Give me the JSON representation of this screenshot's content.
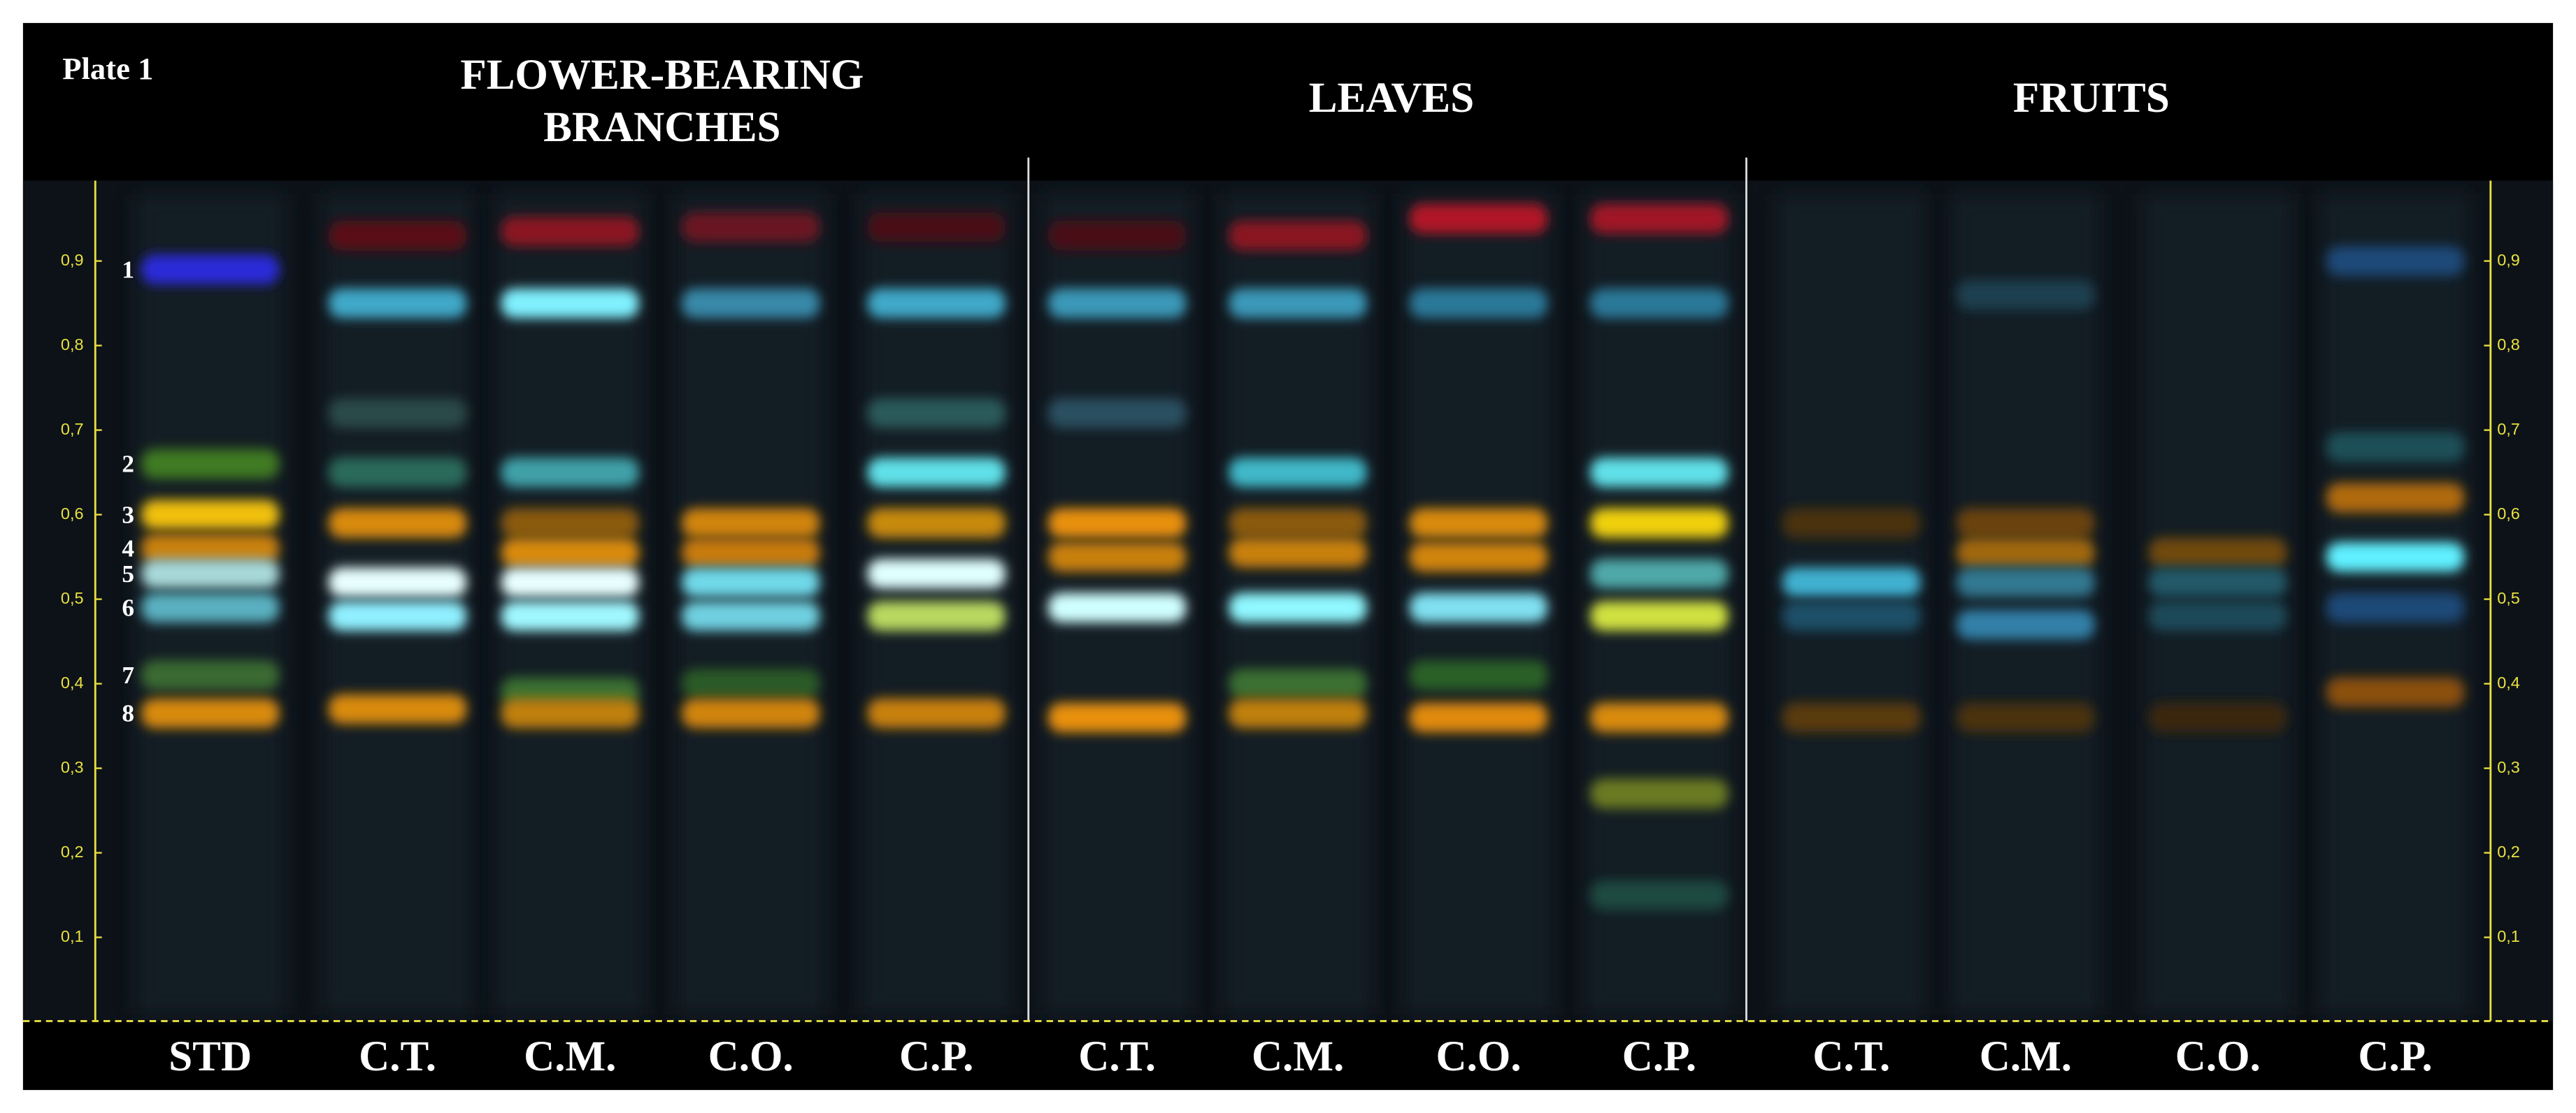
{
  "plate_label": "Plate 1",
  "rf_axis": {
    "ylim": [
      0,
      1
    ],
    "ticks": [
      {
        "value": 0.1,
        "label": "0,1"
      },
      {
        "value": 0.2,
        "label": "0,2"
      },
      {
        "value": 0.3,
        "label": "0,3"
      },
      {
        "value": 0.4,
        "label": "0,4"
      },
      {
        "value": 0.5,
        "label": "0,5"
      },
      {
        "value": 0.6,
        "label": "0,6"
      },
      {
        "value": 0.7,
        "label": "0,7"
      },
      {
        "value": 0.8,
        "label": "0,8"
      },
      {
        "value": 0.9,
        "label": "0,9"
      }
    ]
  },
  "standard": {
    "label": "STD",
    "bands": [
      {
        "number": "1",
        "rf": 0.89,
        "color": "#2a2ad8"
      },
      {
        "number": "2",
        "rf": 0.66,
        "color": "#3f7a22"
      },
      {
        "number": "3",
        "rf": 0.6,
        "color": "#f0c010"
      },
      {
        "number": "4",
        "rf": 0.56,
        "color": "#c88010"
      },
      {
        "number": "5",
        "rf": 0.53,
        "color": "#a8d8d8"
      },
      {
        "number": "6",
        "rf": 0.49,
        "color": "#5ab0c0"
      },
      {
        "number": "7",
        "rf": 0.41,
        "color": "#3a6a30"
      },
      {
        "number": "8",
        "rf": 0.365,
        "color": "#d88a10"
      }
    ]
  },
  "sections": [
    {
      "title_lines": [
        "FLOWER-BEARING",
        "BRANCHES"
      ],
      "lanes": [
        {
          "label": "C.T.",
          "bands": [
            {
              "rf": 0.93,
              "color": "#5a1018"
            },
            {
              "rf": 0.85,
              "color": "#40a8c8"
            },
            {
              "rf": 0.72,
              "color": "#2a4a48"
            },
            {
              "rf": 0.65,
              "color": "#2a6a5a"
            },
            {
              "rf": 0.59,
              "color": "#d88a10"
            },
            {
              "rf": 0.52,
              "color": "#e8ffff"
            },
            {
              "rf": 0.48,
              "color": "#90f0ff"
            },
            {
              "rf": 0.37,
              "color": "#d88a10"
            }
          ]
        },
        {
          "label": "C.M.",
          "bands": [
            {
              "rf": 0.935,
              "color": "#8a1820"
            },
            {
              "rf": 0.85,
              "color": "#80f0ff"
            },
            {
              "rf": 0.65,
              "color": "#40a0a8"
            },
            {
              "rf": 0.59,
              "color": "#8a5a10"
            },
            {
              "rf": 0.555,
              "color": "#d88a10"
            },
            {
              "rf": 0.52,
              "color": "#e8ffff"
            },
            {
              "rf": 0.48,
              "color": "#a0f8ff"
            },
            {
              "rf": 0.39,
              "color": "#3a7030"
            },
            {
              "rf": 0.365,
              "color": "#c08010"
            }
          ]
        },
        {
          "label": "C.O.",
          "bands": [
            {
              "rf": 0.94,
              "color": "#6a1420"
            },
            {
              "rf": 0.85,
              "color": "#3888a8"
            },
            {
              "rf": 0.59,
              "color": "#d08410"
            },
            {
              "rf": 0.555,
              "color": "#c87a10"
            },
            {
              "rf": 0.52,
              "color": "#70d8e8"
            },
            {
              "rf": 0.48,
              "color": "#70d0e0"
            },
            {
              "rf": 0.4,
              "color": "#2a5a28"
            },
            {
              "rf": 0.365,
              "color": "#d08410"
            }
          ]
        },
        {
          "label": "C.P.",
          "bands": [
            {
              "rf": 0.94,
              "color": "#4a1018"
            },
            {
              "rf": 0.85,
              "color": "#40a8c8"
            },
            {
              "rf": 0.72,
              "color": "#2a5a5a"
            },
            {
              "rf": 0.65,
              "color": "#60e0e8"
            },
            {
              "rf": 0.59,
              "color": "#c88a10"
            },
            {
              "rf": 0.53,
              "color": "#e0ffff"
            },
            {
              "rf": 0.48,
              "color": "#b8d860"
            },
            {
              "rf": 0.365,
              "color": "#c88010"
            }
          ]
        }
      ]
    },
    {
      "title_lines": [
        "LEAVES"
      ],
      "lanes": [
        {
          "label": "C.T.",
          "bands": [
            {
              "rf": 0.93,
              "color": "#4a1018"
            },
            {
              "rf": 0.85,
              "color": "#3a98b8"
            },
            {
              "rf": 0.72,
              "color": "#2a5060"
            },
            {
              "rf": 0.59,
              "color": "#e89010"
            },
            {
              "rf": 0.55,
              "color": "#c88010"
            },
            {
              "rf": 0.49,
              "color": "#d0ffff"
            },
            {
              "rf": 0.36,
              "color": "#e89010"
            }
          ]
        },
        {
          "label": "C.M.",
          "bands": [
            {
              "rf": 0.93,
              "color": "#8a1820"
            },
            {
              "rf": 0.85,
              "color": "#3a98b8"
            },
            {
              "rf": 0.65,
              "color": "#40b8c8"
            },
            {
              "rf": 0.59,
              "color": "#8a5a10"
            },
            {
              "rf": 0.555,
              "color": "#c88010"
            },
            {
              "rf": 0.49,
              "color": "#90f8ff"
            },
            {
              "rf": 0.4,
              "color": "#3a7030"
            },
            {
              "rf": 0.365,
              "color": "#c08010"
            }
          ]
        },
        {
          "label": "C.O.",
          "bands": [
            {
              "rf": 0.95,
              "color": "#b01828"
            },
            {
              "rf": 0.85,
              "color": "#2a7898"
            },
            {
              "rf": 0.59,
              "color": "#d88a10"
            },
            {
              "rf": 0.55,
              "color": "#d08410"
            },
            {
              "rf": 0.49,
              "color": "#80e0f0"
            },
            {
              "rf": 0.41,
              "color": "#2a6028"
            },
            {
              "rf": 0.36,
              "color": "#e08a10"
            }
          ]
        },
        {
          "label": "C.P.",
          "bands": [
            {
              "rf": 0.95,
              "color": "#a01828"
            },
            {
              "rf": 0.85,
              "color": "#2a7898"
            },
            {
              "rf": 0.65,
              "color": "#60e0e8"
            },
            {
              "rf": 0.59,
              "color": "#f0d010"
            },
            {
              "rf": 0.53,
              "color": "#50a8a8"
            },
            {
              "rf": 0.48,
              "color": "#d0e040"
            },
            {
              "rf": 0.36,
              "color": "#d88a10"
            },
            {
              "rf": 0.27,
              "color": "#6a7a20"
            },
            {
              "rf": 0.15,
              "color": "#1a4a40"
            }
          ]
        }
      ]
    },
    {
      "title_lines": [
        "FRUITS"
      ],
      "lanes": [
        {
          "label": "C.T.",
          "bands": [
            {
              "rf": 0.59,
              "color": "#4a3010"
            },
            {
              "rf": 0.52,
              "color": "#40b0d0"
            },
            {
              "rf": 0.48,
              "color": "#1a5068"
            },
            {
              "rf": 0.36,
              "color": "#5a3a10"
            }
          ]
        },
        {
          "label": "C.M.",
          "bands": [
            {
              "rf": 0.86,
              "color": "#1a4050"
            },
            {
              "rf": 0.59,
              "color": "#6a4210"
            },
            {
              "rf": 0.555,
              "color": "#a06810"
            },
            {
              "rf": 0.52,
              "color": "#307890"
            },
            {
              "rf": 0.47,
              "color": "#3080a8"
            },
            {
              "rf": 0.36,
              "color": "#4a3010"
            }
          ]
        },
        {
          "label": "C.O.",
          "bands": [
            {
              "rf": 0.555,
              "color": "#704810"
            },
            {
              "rf": 0.52,
              "color": "#205868"
            },
            {
              "rf": 0.48,
              "color": "#1a4858"
            },
            {
              "rf": 0.36,
              "color": "#3a2810"
            }
          ]
        },
        {
          "label": "C.P.",
          "bands": [
            {
              "rf": 0.9,
              "color": "#1a4a78"
            },
            {
              "rf": 0.68,
              "color": "#1a5058"
            },
            {
              "rf": 0.62,
              "color": "#b06a10"
            },
            {
              "rf": 0.55,
              "color": "#60f0ff"
            },
            {
              "rf": 0.49,
              "color": "#1a4878"
            },
            {
              "rf": 0.39,
              "color": "#8a5010"
            }
          ]
        }
      ]
    }
  ]
}
